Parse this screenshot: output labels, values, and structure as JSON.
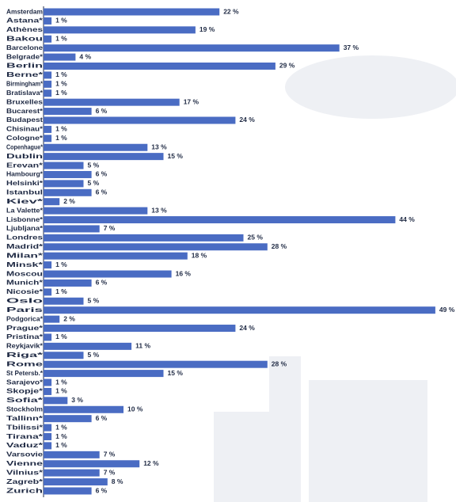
{
  "chart_data": {
    "type": "bar",
    "orientation": "horizontal",
    "color": "#4a6cc3",
    "categories": [
      "Amsterdam",
      "Astana*",
      "Athènes",
      "Bakou",
      "Barcelone",
      "Belgrade*",
      "Berlin",
      "Berne*",
      "Birmingham*",
      "Bratislava*",
      "Bruxelles",
      "Bucarest*",
      "Budapest",
      "Chisinau*",
      "Cologne*",
      "Copenhague*",
      "Dublin",
      "Erevan*",
      "Hambourg*",
      "Helsinki*",
      "Istanbul",
      "Kiev*",
      "La Valette*",
      "Lisbonne*",
      "Ljubljana*",
      "Londres",
      "Madrid*",
      "Milan*",
      "Minsk*",
      "Moscou",
      "Munich*",
      "Nicosie*",
      "Oslo",
      "Paris",
      "Podgorica*",
      "Prague*",
      "Pristina*",
      "Reykjavik*",
      "Riga*",
      "Rome",
      "St Petersb.*",
      "Sarajevo*",
      "Skopje*",
      "Sofia*",
      "Stockholm",
      "Tallinn*",
      "Tbilissi*",
      "Tirana*",
      "Vaduz*",
      "Varsovie",
      "Vienne",
      "Vilnius*",
      "Zagreb*",
      "Zurich"
    ],
    "values": [
      22,
      1,
      19,
      1,
      37,
      4,
      29,
      1,
      1,
      1,
      17,
      6,
      24,
      1,
      1,
      13,
      15,
      5,
      6,
      5,
      6,
      2,
      13,
      44,
      7,
      25,
      28,
      18,
      1,
      16,
      6,
      1,
      5,
      49,
      2,
      24,
      1,
      11,
      5,
      28,
      15,
      1,
      1,
      3,
      10,
      6,
      1,
      1,
      1,
      7,
      12,
      7,
      8,
      6
    ],
    "value_labels": [
      "22 %",
      "1 %",
      "19 %",
      "1 %",
      "37 %",
      "4 %",
      "29 %",
      "1 %",
      "1 %",
      "1 %",
      "17 %",
      "6 %",
      "24 %",
      "1 %",
      "1 %",
      "13 %",
      "15 %",
      "5 %",
      "6 %",
      "5 %",
      "6 %",
      "2 %",
      "13 %",
      "44 %",
      "7 %",
      "25 %",
      "28 %",
      "18 %",
      "1 %",
      "16 %",
      "6 %",
      "1 %",
      "5 %",
      "49 %",
      "2 %",
      "24 %",
      "1 %",
      "11 %",
      "5 %",
      "28 %",
      "15 %",
      "1 %",
      "1 %",
      "3 %",
      "10 %",
      "6 %",
      "1 %",
      "1 %",
      "1 %",
      "7 %",
      "12 %",
      "7 %",
      "8 %",
      "6 %"
    ]
  }
}
